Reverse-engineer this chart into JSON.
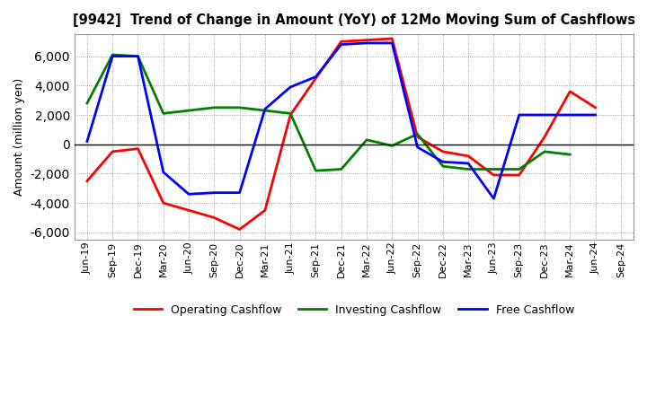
{
  "title": "[9942]  Trend of Change in Amount (YoY) of 12Mo Moving Sum of Cashflows",
  "ylabel": "Amount (million yen)",
  "x_labels": [
    "Jun-19",
    "Sep-19",
    "Dec-19",
    "Mar-20",
    "Jun-20",
    "Sep-20",
    "Dec-20",
    "Mar-21",
    "Jun-21",
    "Sep-21",
    "Dec-21",
    "Mar-22",
    "Jun-22",
    "Sep-22",
    "Dec-22",
    "Mar-23",
    "Jun-23",
    "Sep-23",
    "Dec-23",
    "Mar-24",
    "Jun-24",
    "Sep-24"
  ],
  "operating": [
    -2500,
    -500,
    -300,
    -4000,
    -4500,
    -5000,
    -5800,
    -4500,
    2000,
    4500,
    7000,
    7100,
    7200,
    500,
    -500,
    -800,
    -2100,
    -2100,
    500,
    3600,
    2500,
    null
  ],
  "investing": [
    2800,
    6100,
    6000,
    2100,
    2300,
    2500,
    2500,
    2300,
    2100,
    -1800,
    -1700,
    300,
    -100,
    700,
    -1500,
    -1700,
    -1700,
    -1700,
    -500,
    -700,
    null,
    null
  ],
  "free": [
    200,
    6000,
    6000,
    -1900,
    -3400,
    -3300,
    -3300,
    2400,
    3900,
    4600,
    6800,
    6900,
    6900,
    -200,
    -1200,
    -1300,
    -3700,
    2000,
    2000,
    2000,
    2000,
    null
  ],
  "ylim": [
    -6500,
    7500
  ],
  "yticks": [
    -6000,
    -4000,
    -2000,
    0,
    2000,
    4000,
    6000
  ],
  "operating_color": "#FF0000",
  "investing_color": "#008000",
  "free_color": "#0000FF",
  "line_width": 2.0,
  "background_color": "#FFFFFF",
  "grid_color": "#888888"
}
